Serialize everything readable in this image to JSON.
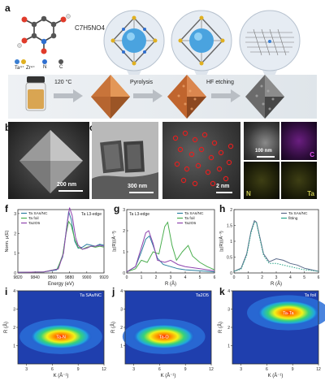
{
  "panels": {
    "a": "a",
    "b": "b",
    "c": "c",
    "d": "d",
    "e": "e",
    "f": "f",
    "g": "g",
    "h": "h",
    "i": "i",
    "j": "j",
    "k": "k"
  },
  "schematic": {
    "formula": "C7H5NO4",
    "atom_legend": [
      "Ta⁴⁺",
      "Zr⁴⁺",
      "N",
      "C"
    ],
    "atom_colors": [
      "#3b7fd1",
      "#e0b020",
      "#2f6fd0",
      "#555555"
    ],
    "step1": "120 °C",
    "step2": "Pyrolysis",
    "step3": "HF etching"
  },
  "micro": {
    "b_scale": "200 nm",
    "c_scale": "300 nm",
    "d_scale": "2 nm",
    "e_scale": "100 nm",
    "e_maps": [
      "C",
      "N",
      "Ta"
    ],
    "e_map_colors": [
      "#c238d8",
      "#8a8a2a",
      "#8a8a2a"
    ]
  },
  "chart_data": [
    {
      "panel": "f",
      "type": "line",
      "title": "Ta L3-edge",
      "xlabel": "Energy (eV)",
      "ylabel": "Norm. μ(E)",
      "xlim": [
        9820,
        9920
      ],
      "ylim": [
        0,
        3.2
      ],
      "x_ticks": [
        9820,
        9840,
        9860,
        9880,
        9900,
        9920
      ],
      "y_ticks": [
        0,
        1,
        2,
        3
      ],
      "legend_position": "top-left",
      "series": [
        {
          "name": "Ta SAs/NC",
          "color": "#2a7fa0",
          "x": [
            9820,
            9850,
            9865,
            9872,
            9876,
            9879,
            9882,
            9886,
            9890,
            9895,
            9900,
            9905,
            9910,
            9915,
            9920
          ],
          "y": [
            0.03,
            0.05,
            0.15,
            0.8,
            2.1,
            3.1,
            2.7,
            1.6,
            1.25,
            1.3,
            1.45,
            1.4,
            1.35,
            1.45,
            1.4
          ]
        },
        {
          "name": "Ta foil",
          "color": "#4caf50",
          "x": [
            9820,
            9850,
            9866,
            9872,
            9876,
            9879,
            9882,
            9886,
            9890,
            9895,
            9900,
            9905,
            9910,
            9915,
            9920
          ],
          "y": [
            0.03,
            0.05,
            0.2,
            0.9,
            2.0,
            2.6,
            2.4,
            1.7,
            1.3,
            1.2,
            1.3,
            1.35,
            1.3,
            1.35,
            1.3
          ]
        },
        {
          "name": "Ta2O5",
          "color": "#8e44ad",
          "x": [
            9820,
            9850,
            9867,
            9873,
            9877,
            9880,
            9883,
            9887,
            9890,
            9895,
            9900,
            9905,
            9910,
            9915,
            9920
          ],
          "y": [
            0.03,
            0.05,
            0.2,
            1.0,
            2.4,
            3.3,
            2.9,
            1.8,
            1.4,
            1.2,
            1.25,
            1.35,
            1.35,
            1.4,
            1.35
          ]
        }
      ]
    },
    {
      "panel": "g",
      "type": "line",
      "title": "Ta L3-edge",
      "xlabel": "R (Å)",
      "ylabel": "|χ(R)|(Å⁻³)",
      "xlim": [
        0,
        6
      ],
      "ylim": [
        0,
        3
      ],
      "x_ticks": [
        0,
        1,
        2,
        3,
        4,
        5,
        6
      ],
      "y_ticks": [
        0,
        1,
        2,
        3
      ],
      "legend_position": "top-right",
      "series": [
        {
          "name": "Ta SAs/NC",
          "color": "#2a7fa0",
          "x": [
            0,
            0.6,
            1.0,
            1.3,
            1.55,
            1.8,
            2.1,
            2.5,
            3.0,
            3.5,
            4.0,
            5.0,
            6.0
          ],
          "y": [
            0.05,
            0.3,
            1.0,
            1.6,
            1.75,
            1.3,
            0.7,
            0.4,
            0.3,
            0.2,
            0.15,
            0.1,
            0.05
          ]
        },
        {
          "name": "Ta foil",
          "color": "#4caf50",
          "x": [
            0,
            0.6,
            1.0,
            1.4,
            1.8,
            2.2,
            2.6,
            2.8,
            3.1,
            3.4,
            3.8,
            4.2,
            4.5,
            5.0,
            5.5,
            6.0
          ],
          "y": [
            0.05,
            0.2,
            0.6,
            0.5,
            1.0,
            0.9,
            2.2,
            2.4,
            1.3,
            0.6,
            1.0,
            1.3,
            0.8,
            0.5,
            0.3,
            0.15
          ]
        },
        {
          "name": "Ta2O5",
          "color": "#8e44ad",
          "x": [
            0,
            0.6,
            1.0,
            1.3,
            1.5,
            1.8,
            2.1,
            2.6,
            3.0,
            3.5,
            4.0,
            5.0,
            6.0
          ],
          "y": [
            0.05,
            0.3,
            1.2,
            1.9,
            2.0,
            1.4,
            0.6,
            0.5,
            0.6,
            0.4,
            0.3,
            0.2,
            0.1
          ]
        }
      ]
    },
    {
      "panel": "h",
      "type": "line",
      "xlabel": "R (Å)",
      "ylabel": "|χ(R)|(Å⁻³)",
      "xlim": [
        0,
        6
      ],
      "ylim": [
        0,
        2
      ],
      "x_ticks": [
        0,
        1,
        2,
        3,
        4,
        5,
        6
      ],
      "y_ticks": [
        0.0,
        0.5,
        1.0,
        1.5,
        2.0
      ],
      "legend_position": "top-right",
      "series": [
        {
          "name": "Ta SAs/NC",
          "color": "#5a6a8a",
          "x": [
            0,
            0.5,
            0.9,
            1.2,
            1.45,
            1.6,
            1.8,
            2.1,
            2.5,
            3.0,
            3.5,
            4.0,
            4.5,
            5.0,
            5.5,
            6.0
          ],
          "y": [
            0.05,
            0.15,
            0.6,
            1.3,
            1.65,
            1.6,
            1.2,
            0.6,
            0.35,
            0.45,
            0.4,
            0.3,
            0.25,
            0.15,
            0.1,
            0.05
          ]
        },
        {
          "name": "fitting",
          "color": "#2aa58a",
          "x": [
            0,
            0.5,
            0.9,
            1.2,
            1.45,
            1.6,
            1.8,
            2.1,
            2.5,
            3.0,
            3.5,
            4.0,
            4.5,
            5.0,
            5.5,
            6.0
          ],
          "y": [
            0.05,
            0.12,
            0.55,
            1.25,
            1.6,
            1.58,
            1.15,
            0.55,
            0.3,
            0.3,
            0.25,
            0.2,
            0.15,
            0.1,
            0.08,
            0.05
          ]
        }
      ]
    },
    {
      "panel": "i",
      "type": "heatmap",
      "title": "Ta SAs/NC",
      "xlabel": "K (Å⁻¹)",
      "ylabel": "R (Å)",
      "xlim": [
        2,
        12
      ],
      "ylim": [
        0,
        4
      ],
      "x_ticks": [
        3,
        6,
        9,
        12
      ],
      "y_ticks": [
        1,
        2,
        3,
        4
      ],
      "annotation": "Ta-N",
      "hotspot": {
        "k": 7.0,
        "r": 1.5
      }
    },
    {
      "panel": "j",
      "type": "heatmap",
      "title": "Ta2O5",
      "xlabel": "K (Å⁻¹)",
      "ylabel": "R (Å)",
      "xlim": [
        2,
        12
      ],
      "ylim": [
        0,
        4
      ],
      "x_ticks": [
        3,
        6,
        9,
        12
      ],
      "y_ticks": [
        1,
        2,
        3,
        4
      ],
      "annotation": "Ta-O",
      "hotspot": {
        "k": 6.5,
        "r": 1.5
      }
    },
    {
      "panel": "k",
      "type": "heatmap",
      "title": "Ta foil",
      "xlabel": "K (Å⁻¹)",
      "ylabel": "R (Å)",
      "xlim": [
        2,
        12
      ],
      "ylim": [
        0,
        4
      ],
      "x_ticks": [
        3,
        6,
        9,
        12
      ],
      "y_ticks": [
        1,
        2,
        3,
        4
      ],
      "annotation": "Ta-Ta",
      "hotspot": {
        "k": 8.5,
        "r": 2.8
      }
    }
  ]
}
